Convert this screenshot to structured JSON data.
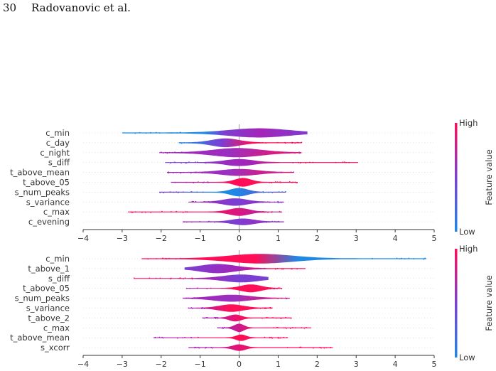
{
  "header": {
    "page_number": "30",
    "authors": "Radovanovic et al."
  },
  "colorbar": {
    "high_label": "High",
    "low_label": "Low",
    "title": "Feature value",
    "low_color": "#1e88e5",
    "high_color": "#ff0d57"
  },
  "chart_data": [
    {
      "type": "violin",
      "xlim": [
        -4,
        5
      ],
      "x_ticks": [
        -4,
        -3,
        -2,
        -1,
        0,
        1,
        2,
        3,
        4,
        5
      ],
      "grid": false,
      "features": [
        {
          "name": "c_min",
          "min": -3.0,
          "max": 1.75,
          "peak": 0.5,
          "width": 0.95,
          "spread": 0.75,
          "color": "mixed_low_left"
        },
        {
          "name": "c_day",
          "min": -1.55,
          "max": 1.6,
          "peak": -0.35,
          "width": 0.9,
          "spread": 0.35,
          "color": "blue_left_red_right"
        },
        {
          "name": "c_night",
          "min": -2.05,
          "max": 1.6,
          "peak": -0.05,
          "width": 0.95,
          "spread": 0.6,
          "color": "mixed_purple"
        },
        {
          "name": "s_diff",
          "min": -1.9,
          "max": 3.05,
          "peak": 0.0,
          "width": 0.7,
          "spread": 0.35,
          "color": "purple_left_red_right"
        },
        {
          "name": "t_above_mean",
          "min": -1.85,
          "max": 1.4,
          "peak": 0.0,
          "width": 0.7,
          "spread": 0.45,
          "color": "mixed_purple"
        },
        {
          "name": "t_above_05",
          "min": -1.75,
          "max": 1.5,
          "peak": 0.1,
          "width": 0.9,
          "spread": 0.2,
          "color": "red_center"
        },
        {
          "name": "s_num_peaks",
          "min": -2.05,
          "max": 1.2,
          "peak": 0.0,
          "width": 0.85,
          "spread": 0.22,
          "color": "blue_center"
        },
        {
          "name": "s_variance",
          "min": -1.3,
          "max": 1.15,
          "peak": -0.1,
          "width": 0.75,
          "spread": 0.3,
          "color": "purple_center"
        },
        {
          "name": "c_max",
          "min": -2.85,
          "max": 1.1,
          "peak": 0.0,
          "width": 0.8,
          "spread": 0.25,
          "color": "red_left"
        },
        {
          "name": "c_evening",
          "min": -1.45,
          "max": 1.15,
          "peak": 0.1,
          "width": 0.65,
          "spread": 0.28,
          "color": "purple_center"
        }
      ]
    },
    {
      "type": "violin",
      "xlim": [
        -4,
        5
      ],
      "x_ticks": [
        -4,
        -3,
        -2,
        -1,
        0,
        1,
        2,
        3,
        4,
        5
      ],
      "grid": false,
      "features": [
        {
          "name": "c_min",
          "min": -2.5,
          "max": 4.8,
          "peak": 0.55,
          "width": 1.0,
          "spread": 0.8,
          "color": "red_left_blue_right"
        },
        {
          "name": "t_above_1",
          "min": -1.4,
          "max": 1.7,
          "peak": -0.55,
          "width": 0.95,
          "spread": 0.45,
          "color": "purple_left_red_right"
        },
        {
          "name": "s_diff",
          "min": -2.7,
          "max": 0.75,
          "peak": 0.05,
          "width": 0.8,
          "spread": 0.45,
          "color": "red_left_purple_right"
        },
        {
          "name": "t_above_05",
          "min": -1.35,
          "max": 1.1,
          "peak": 0.3,
          "width": 0.8,
          "spread": 0.25,
          "color": "red_center"
        },
        {
          "name": "s_num_peaks",
          "min": -1.45,
          "max": 1.3,
          "peak": -0.2,
          "width": 0.7,
          "spread": 0.45,
          "color": "mixed_purple"
        },
        {
          "name": "s_variance",
          "min": -1.3,
          "max": 0.85,
          "peak": -0.2,
          "width": 0.75,
          "spread": 0.3,
          "color": "red_center"
        },
        {
          "name": "t_above_2",
          "min": -0.95,
          "max": 1.35,
          "peak": -0.1,
          "width": 0.7,
          "spread": 0.15,
          "color": "red_center"
        },
        {
          "name": "c_max",
          "min": -0.55,
          "max": 1.85,
          "peak": 0.0,
          "width": 0.85,
          "spread": 0.12,
          "color": "red_center"
        },
        {
          "name": "t_above_mean",
          "min": -2.2,
          "max": 1.25,
          "peak": 0.05,
          "width": 0.65,
          "spread": 0.12,
          "color": "red_center"
        },
        {
          "name": "s_xcorr",
          "min": -1.3,
          "max": 2.4,
          "peak": 0.0,
          "width": 0.65,
          "spread": 0.15,
          "color": "red_center"
        }
      ]
    }
  ]
}
